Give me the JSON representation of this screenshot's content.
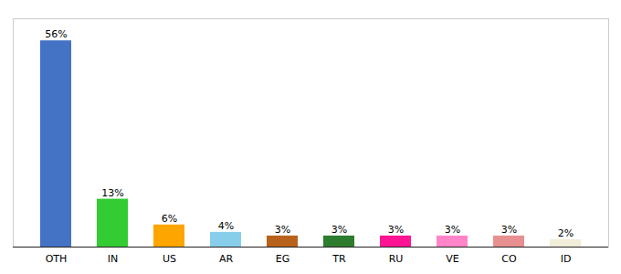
{
  "chart_data": {
    "type": "bar",
    "categories": [
      "OTH",
      "IN",
      "US",
      "AR",
      "EG",
      "TR",
      "RU",
      "VE",
      "CO",
      "ID"
    ],
    "values": [
      56,
      13,
      6,
      4,
      3,
      3,
      3,
      3,
      3,
      2
    ],
    "value_labels": [
      "56%",
      "13%",
      "6%",
      "4%",
      "3%",
      "3%",
      "3%",
      "3%",
      "3%",
      "2%"
    ],
    "colors": [
      "#4472C4",
      "#33CC33",
      "#FFA500",
      "#87CEEB",
      "#B8621B",
      "#2E7D2E",
      "#FF1493",
      "#FF85C8",
      "#E89090",
      "#F0EDD8"
    ],
    "ylim": [
      0,
      62
    ],
    "data_labels": true,
    "tick_labels": "x",
    "grid": false
  }
}
